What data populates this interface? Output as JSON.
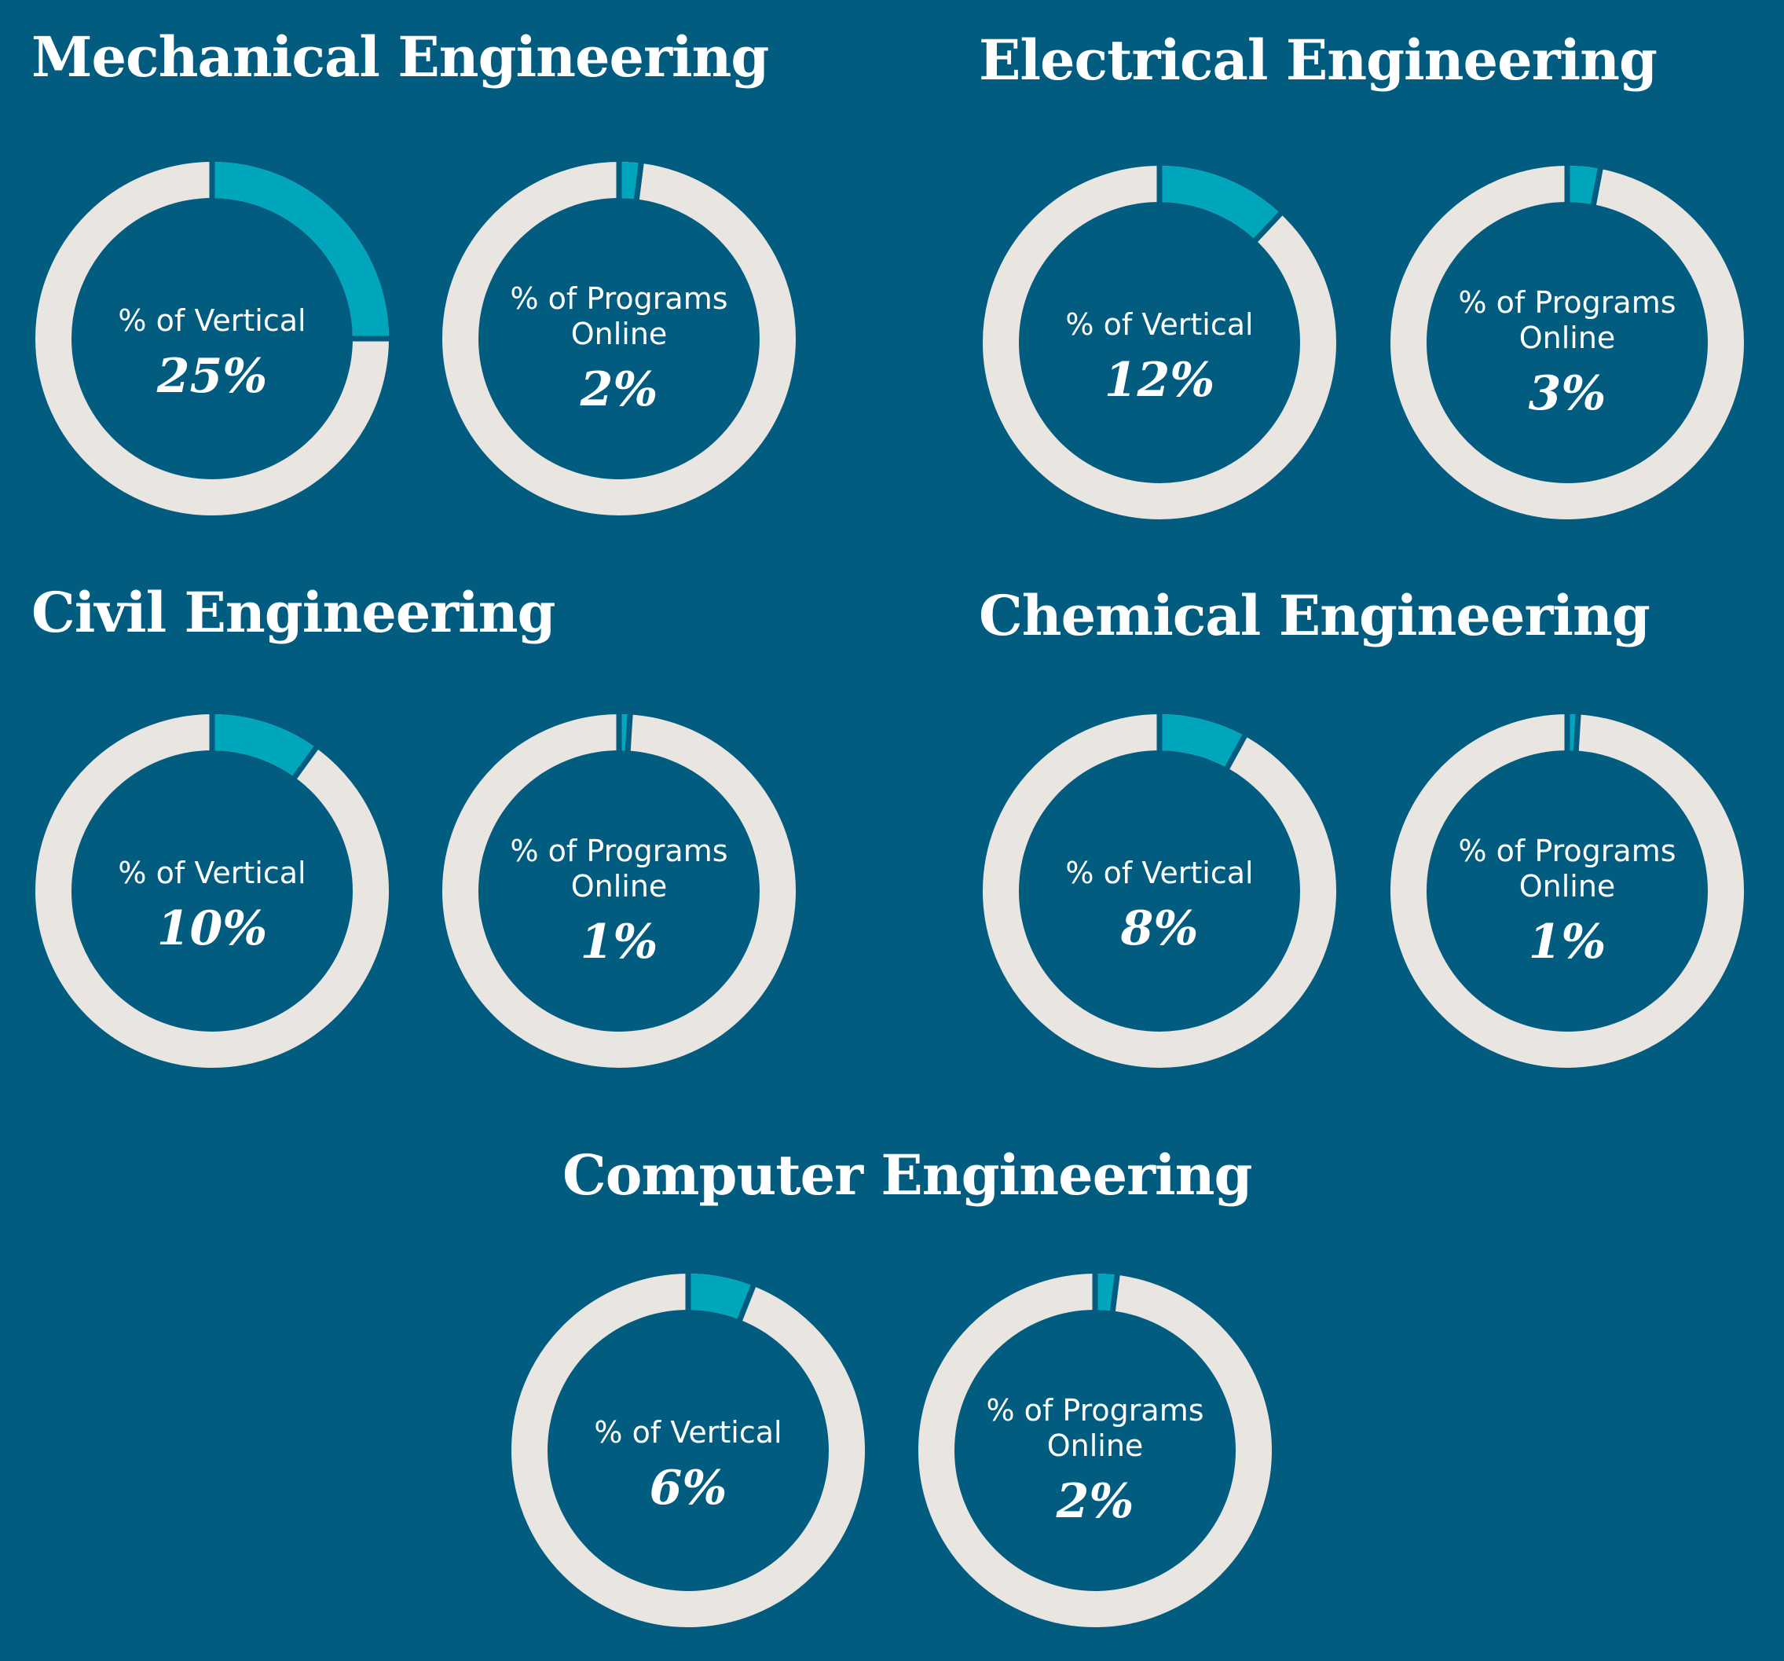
{
  "colors": {
    "background": "#025c80",
    "ring_track": "#e9e6e1",
    "ring_fill": "#00a6bb",
    "text": "#ffffff"
  },
  "chart_data": [
    {
      "type": "pie",
      "title": "Mechanical Engineering",
      "charts": [
        {
          "label": [
            "% of Vertical"
          ],
          "value": 25,
          "value_label": "25%"
        },
        {
          "label": [
            "% of Programs",
            "Online"
          ],
          "value": 2,
          "value_label": "2%"
        }
      ]
    },
    {
      "type": "pie",
      "title": "Electrical Engineering",
      "charts": [
        {
          "label": [
            "% of Vertical"
          ],
          "value": 12,
          "value_label": "12%"
        },
        {
          "label": [
            "% of Programs",
            "Online"
          ],
          "value": 3,
          "value_label": "3%"
        }
      ]
    },
    {
      "type": "pie",
      "title": "Civil Engineering",
      "charts": [
        {
          "label": [
            "% of Vertical"
          ],
          "value": 10,
          "value_label": "10%"
        },
        {
          "label": [
            "% of Programs",
            "Online"
          ],
          "value": 1,
          "value_label": "1%"
        }
      ]
    },
    {
      "type": "pie",
      "title": "Chemical Engineering",
      "charts": [
        {
          "label": [
            "% of Vertical"
          ],
          "value": 8,
          "value_label": "8%"
        },
        {
          "label": [
            "% of Programs",
            "Online"
          ],
          "value": 1,
          "value_label": "1%"
        }
      ]
    },
    {
      "type": "pie",
      "title": "Computer Engineering",
      "charts": [
        {
          "label": [
            "% of Vertical"
          ],
          "value": 6,
          "value_label": "6%"
        },
        {
          "label": [
            "% of Programs",
            "Online"
          ],
          "value": 2,
          "value_label": "2%"
        }
      ]
    }
  ]
}
